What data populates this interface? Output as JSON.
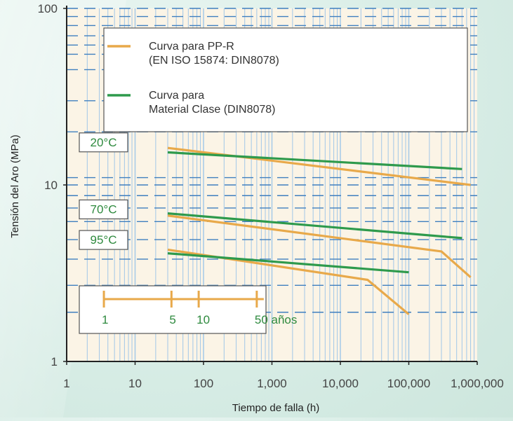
{
  "chart_data": {
    "type": "line",
    "xlabel": "Tiempo de falla (h)",
    "ylabel": "Tensión del Aro (MPa)",
    "x_scale": "log",
    "y_scale": "log",
    "xlim": [
      1,
      1000000
    ],
    "ylim": [
      1,
      100
    ],
    "x_ticks": [
      "1",
      "10",
      "100",
      "1,000",
      "10,000",
      "100,000",
      "1,000,000"
    ],
    "y_ticks": [
      "1",
      "10",
      "100"
    ],
    "grid": true,
    "colors": {
      "pp_r": "#e8a94a",
      "material": "#2e9a4c",
      "label_text": "#2e8a3e",
      "dash": "#3f7fbf",
      "vgrid": "#a9cbe8",
      "plot_bg": "#fbf4e6"
    },
    "legend": {
      "placement": "top",
      "entries": [
        {
          "series": "pp_r",
          "line1": "Curva  para PP-R",
          "line2": "(EN ISO 15874: DIN8078)"
        },
        {
          "series": "material",
          "line1": "Curva  para",
          "line2": "Material Clase (DIN8078)"
        }
      ]
    },
    "temperature_labels": [
      {
        "text": "20°C",
        "y": 17.5
      },
      {
        "text": "70°C",
        "y": 7.3
      },
      {
        "text": "95°C",
        "y": 4.9
      }
    ],
    "dashed_reference_y": [
      1.9,
      2.7,
      3.8,
      4.9,
      6.2,
      7.4,
      8.7,
      10,
      11,
      20,
      30,
      45,
      55,
      62,
      70,
      80,
      90,
      100
    ],
    "series": [
      {
        "key": "pp_r",
        "temperature": "20°C",
        "points": [
          [
            30,
            16.2
          ],
          [
            800000,
            10.0
          ]
        ]
      },
      {
        "key": "material",
        "temperature": "20°C",
        "points": [
          [
            30,
            15.3
          ],
          [
            600000,
            12.3
          ]
        ]
      },
      {
        "key": "pp_r",
        "temperature": "70°C",
        "points": [
          [
            30,
            6.7
          ],
          [
            300000,
            4.2
          ],
          [
            800000,
            3.0
          ]
        ]
      },
      {
        "key": "material",
        "temperature": "70°C",
        "points": [
          [
            30,
            6.9
          ],
          [
            600000,
            5.0
          ]
        ]
      },
      {
        "key": "pp_r",
        "temperature": "95°C",
        "points": [
          [
            30,
            4.3
          ],
          [
            25000,
            2.9
          ],
          [
            100000,
            1.85
          ]
        ]
      },
      {
        "key": "material",
        "temperature": "95°C",
        "points": [
          [
            30,
            4.1
          ],
          [
            100000,
            3.2
          ]
        ]
      }
    ],
    "time_scale": {
      "ticks": [
        {
          "label": "1",
          "x": 3.5
        },
        {
          "label": "5",
          "x": 34
        },
        {
          "label": "10",
          "x": 85
        },
        {
          "label": "50 años",
          "x": 600
        }
      ]
    }
  }
}
